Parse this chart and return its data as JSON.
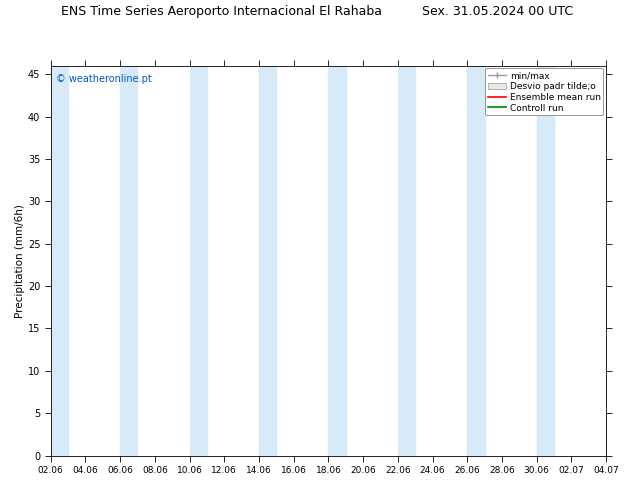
{
  "title_left": "ENS Time Series Aeroporto Internacional El Rahaba",
  "title_right": "Sex. 31.05.2024 00 UTC",
  "ylabel": "Precipitation (mm/6h)",
  "watermark": "© weatheronline.pt",
  "ylim": [
    0,
    46
  ],
  "yticks": [
    0,
    5,
    10,
    15,
    20,
    25,
    30,
    35,
    40,
    45
  ],
  "xtick_labels": [
    "02.06",
    "04.06",
    "06.06",
    "08.06",
    "10.06",
    "12.06",
    "14.06",
    "16.06",
    "18.06",
    "20.06",
    "22.06",
    "24.06",
    "26.06",
    "28.06",
    "30.06",
    "02.07",
    "04.07"
  ],
  "band_color": "#d6eaf8",
  "background_color": "#ffffff",
  "plot_bg_color": "#ffffff",
  "title_fontsize": 9,
  "legend_labels": [
    "min/max",
    "Desvio padr tilde;o",
    "Ensemble mean run",
    "Controll run"
  ],
  "legend_colors": [
    "#999999",
    "#cccccc",
    "#ff0000",
    "#008000"
  ],
  "figsize": [
    6.34,
    4.9
  ],
  "dpi": 100
}
